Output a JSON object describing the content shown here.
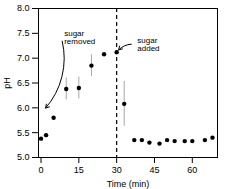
{
  "chart_data": {
    "type": "scatter",
    "x": [
      0,
      2,
      5,
      10,
      15,
      20,
      25,
      30,
      33,
      37,
      40,
      43,
      47,
      50,
      53,
      57,
      60,
      65,
      68
    ],
    "values": [
      5.38,
      5.45,
      5.8,
      6.38,
      6.4,
      6.85,
      7.08,
      7.12,
      6.08,
      5.35,
      5.35,
      5.3,
      5.28,
      5.35,
      5.33,
      5.33,
      5.33,
      5.35,
      5.4
    ],
    "yerr": [
      0.0,
      0.0,
      0.0,
      0.22,
      0.22,
      0.22,
      0.0,
      0.0,
      0.45,
      0.0,
      0.0,
      0.0,
      0.0,
      0.0,
      0.0,
      0.0,
      0.0,
      0.0,
      0.0
    ],
    "xlim": [
      -1,
      70
    ],
    "ylim": [
      5.0,
      8.0
    ],
    "xticks": [
      0,
      15,
      30,
      45,
      60
    ],
    "yticks": [
      {
        "value": 5.0,
        "label": "5.0"
      },
      {
        "value": 5.5,
        "label": "5.5"
      },
      {
        "value": 6.0,
        "label": "6.0"
      },
      {
        "value": 6.5,
        "label": "6.5"
      },
      {
        "value": 7.0,
        "label": "7.0"
      },
      {
        "value": 7.5,
        "label": "7.5"
      },
      {
        "value": 8.0,
        "label": "8.0"
      }
    ],
    "xlabel": "Time (min)",
    "ylabel": "pH",
    "vline": {
      "x": 30,
      "line_style": "dashed"
    },
    "annotations": [
      {
        "text": "sugar\nremoved",
        "xy": [
          1.0,
          5.95
        ],
        "xytext": [
          8.0,
          7.42
        ]
      },
      {
        "text": "sugar\nadded",
        "xy": [
          30.0,
          7.12
        ],
        "xytext": [
          37.0,
          7.28
        ]
      }
    ],
    "grid": false
  }
}
